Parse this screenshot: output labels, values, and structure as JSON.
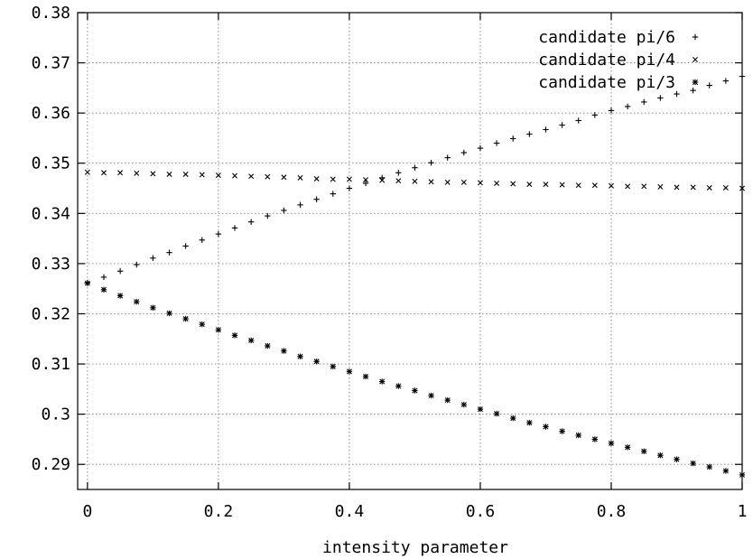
{
  "chart_data": {
    "type": "scatter",
    "title": "",
    "xlabel": "intensity parameter",
    "ylabel": "",
    "xlim": [
      0,
      1
    ],
    "ylim": [
      0.285,
      0.38
    ],
    "grid": true,
    "legend_position": "top-right",
    "x_ticks": [
      "0",
      "0.2",
      "0.4",
      "0.6",
      "0.8",
      "1"
    ],
    "y_ticks": [
      "0.29",
      "0.3",
      "0.31",
      "0.32",
      "0.33",
      "0.34",
      "0.35",
      "0.36",
      "0.37",
      "0.38"
    ],
    "x": [
      0.0,
      0.025,
      0.05,
      0.075,
      0.1,
      0.125,
      0.15,
      0.175,
      0.2,
      0.225,
      0.25,
      0.275,
      0.3,
      0.325,
      0.35,
      0.375,
      0.4,
      0.425,
      0.45,
      0.475,
      0.5,
      0.525,
      0.55,
      0.575,
      0.6,
      0.625,
      0.65,
      0.675,
      0.7,
      0.725,
      0.75,
      0.775,
      0.8,
      0.825,
      0.85,
      0.875,
      0.9,
      0.925,
      0.95,
      0.975,
      1.0
    ],
    "series": [
      {
        "name": "candidate pi/6",
        "marker": "plus",
        "values": [
          0.3262,
          0.3273,
          0.3285,
          0.3298,
          0.3311,
          0.3322,
          0.3335,
          0.3347,
          0.3359,
          0.3371,
          0.3383,
          0.3395,
          0.3406,
          0.3417,
          0.3428,
          0.3439,
          0.345,
          0.346,
          0.3471,
          0.3481,
          0.3491,
          0.3501,
          0.3511,
          0.3521,
          0.353,
          0.354,
          0.3549,
          0.3558,
          0.3567,
          0.3576,
          0.3585,
          0.3596,
          0.3605,
          0.3613,
          0.3622,
          0.363,
          0.3638,
          0.3645,
          0.3655,
          0.3664,
          0.3673
        ]
      },
      {
        "name": "candidate pi/4",
        "marker": "cross",
        "values": [
          0.3482,
          0.3481,
          0.3481,
          0.348,
          0.3479,
          0.3478,
          0.3478,
          0.3477,
          0.3476,
          0.3475,
          0.3474,
          0.3473,
          0.3472,
          0.3471,
          0.3469,
          0.3468,
          0.3468,
          0.3467,
          0.3466,
          0.3465,
          0.3464,
          0.3463,
          0.3462,
          0.3462,
          0.3461,
          0.346,
          0.3459,
          0.3458,
          0.3458,
          0.3457,
          0.3456,
          0.3456,
          0.3455,
          0.3454,
          0.3454,
          0.3453,
          0.3452,
          0.3452,
          0.3451,
          0.3451,
          0.345
        ]
      },
      {
        "name": "candidate pi/3",
        "marker": "star",
        "values": [
          0.3261,
          0.3248,
          0.3236,
          0.3224,
          0.3212,
          0.3201,
          0.319,
          0.3179,
          0.3168,
          0.3157,
          0.3147,
          0.3136,
          0.3126,
          0.3115,
          0.3105,
          0.3095,
          0.3085,
          0.3075,
          0.3065,
          0.3056,
          0.3047,
          0.3037,
          0.3028,
          0.3019,
          0.301,
          0.3001,
          0.2992,
          0.2983,
          0.2975,
          0.2966,
          0.2958,
          0.295,
          0.2942,
          0.2934,
          0.2926,
          0.2918,
          0.291,
          0.2902,
          0.2895,
          0.2887,
          0.2879
        ]
      }
    ]
  }
}
